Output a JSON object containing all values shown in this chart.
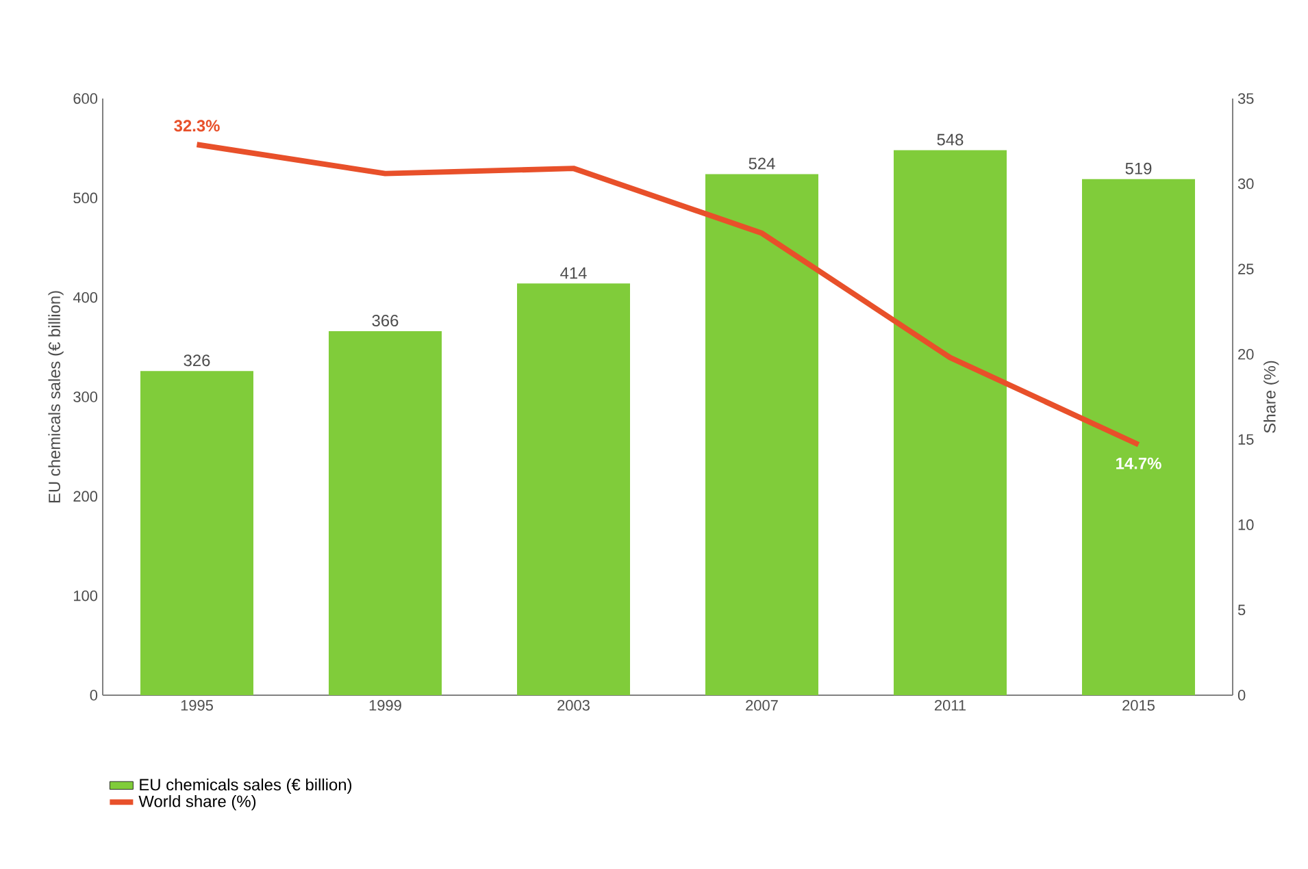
{
  "chart_data": {
    "type": "bar",
    "ylabel": "EU chemicals sales (€ billion)",
    "y2label": "Share (%)",
    "categories": [
      "1995",
      "1999",
      "2003",
      "2007",
      "2011",
      "2015"
    ],
    "series": [
      {
        "name": "EU chemicals sales (€ billion)",
        "color": "#80cc3a",
        "values": [
          326,
          366,
          414,
          524,
          548,
          519
        ],
        "value_labels": [
          "326",
          "366",
          "414",
          "524",
          "548",
          "519"
        ]
      },
      {
        "name": "World share (%)",
        "type": "line",
        "axis": "y2",
        "color": "#e8502a",
        "values": [
          32.3,
          30.6,
          30.9,
          27.1,
          19.8,
          14.7
        ],
        "value_labels": [
          "32.3%",
          null,
          null,
          null,
          null,
          "14.7%"
        ]
      }
    ],
    "ylim": [
      0,
      600
    ],
    "yticks": [
      0,
      100,
      200,
      300,
      400,
      500,
      600
    ],
    "y2lim": [
      0,
      35
    ],
    "y2ticks": [
      0,
      5,
      10,
      15,
      20,
      25,
      30,
      35
    ],
    "grid": false,
    "legend": "bottom left",
    "marker": "none",
    "line_style": "solid"
  }
}
